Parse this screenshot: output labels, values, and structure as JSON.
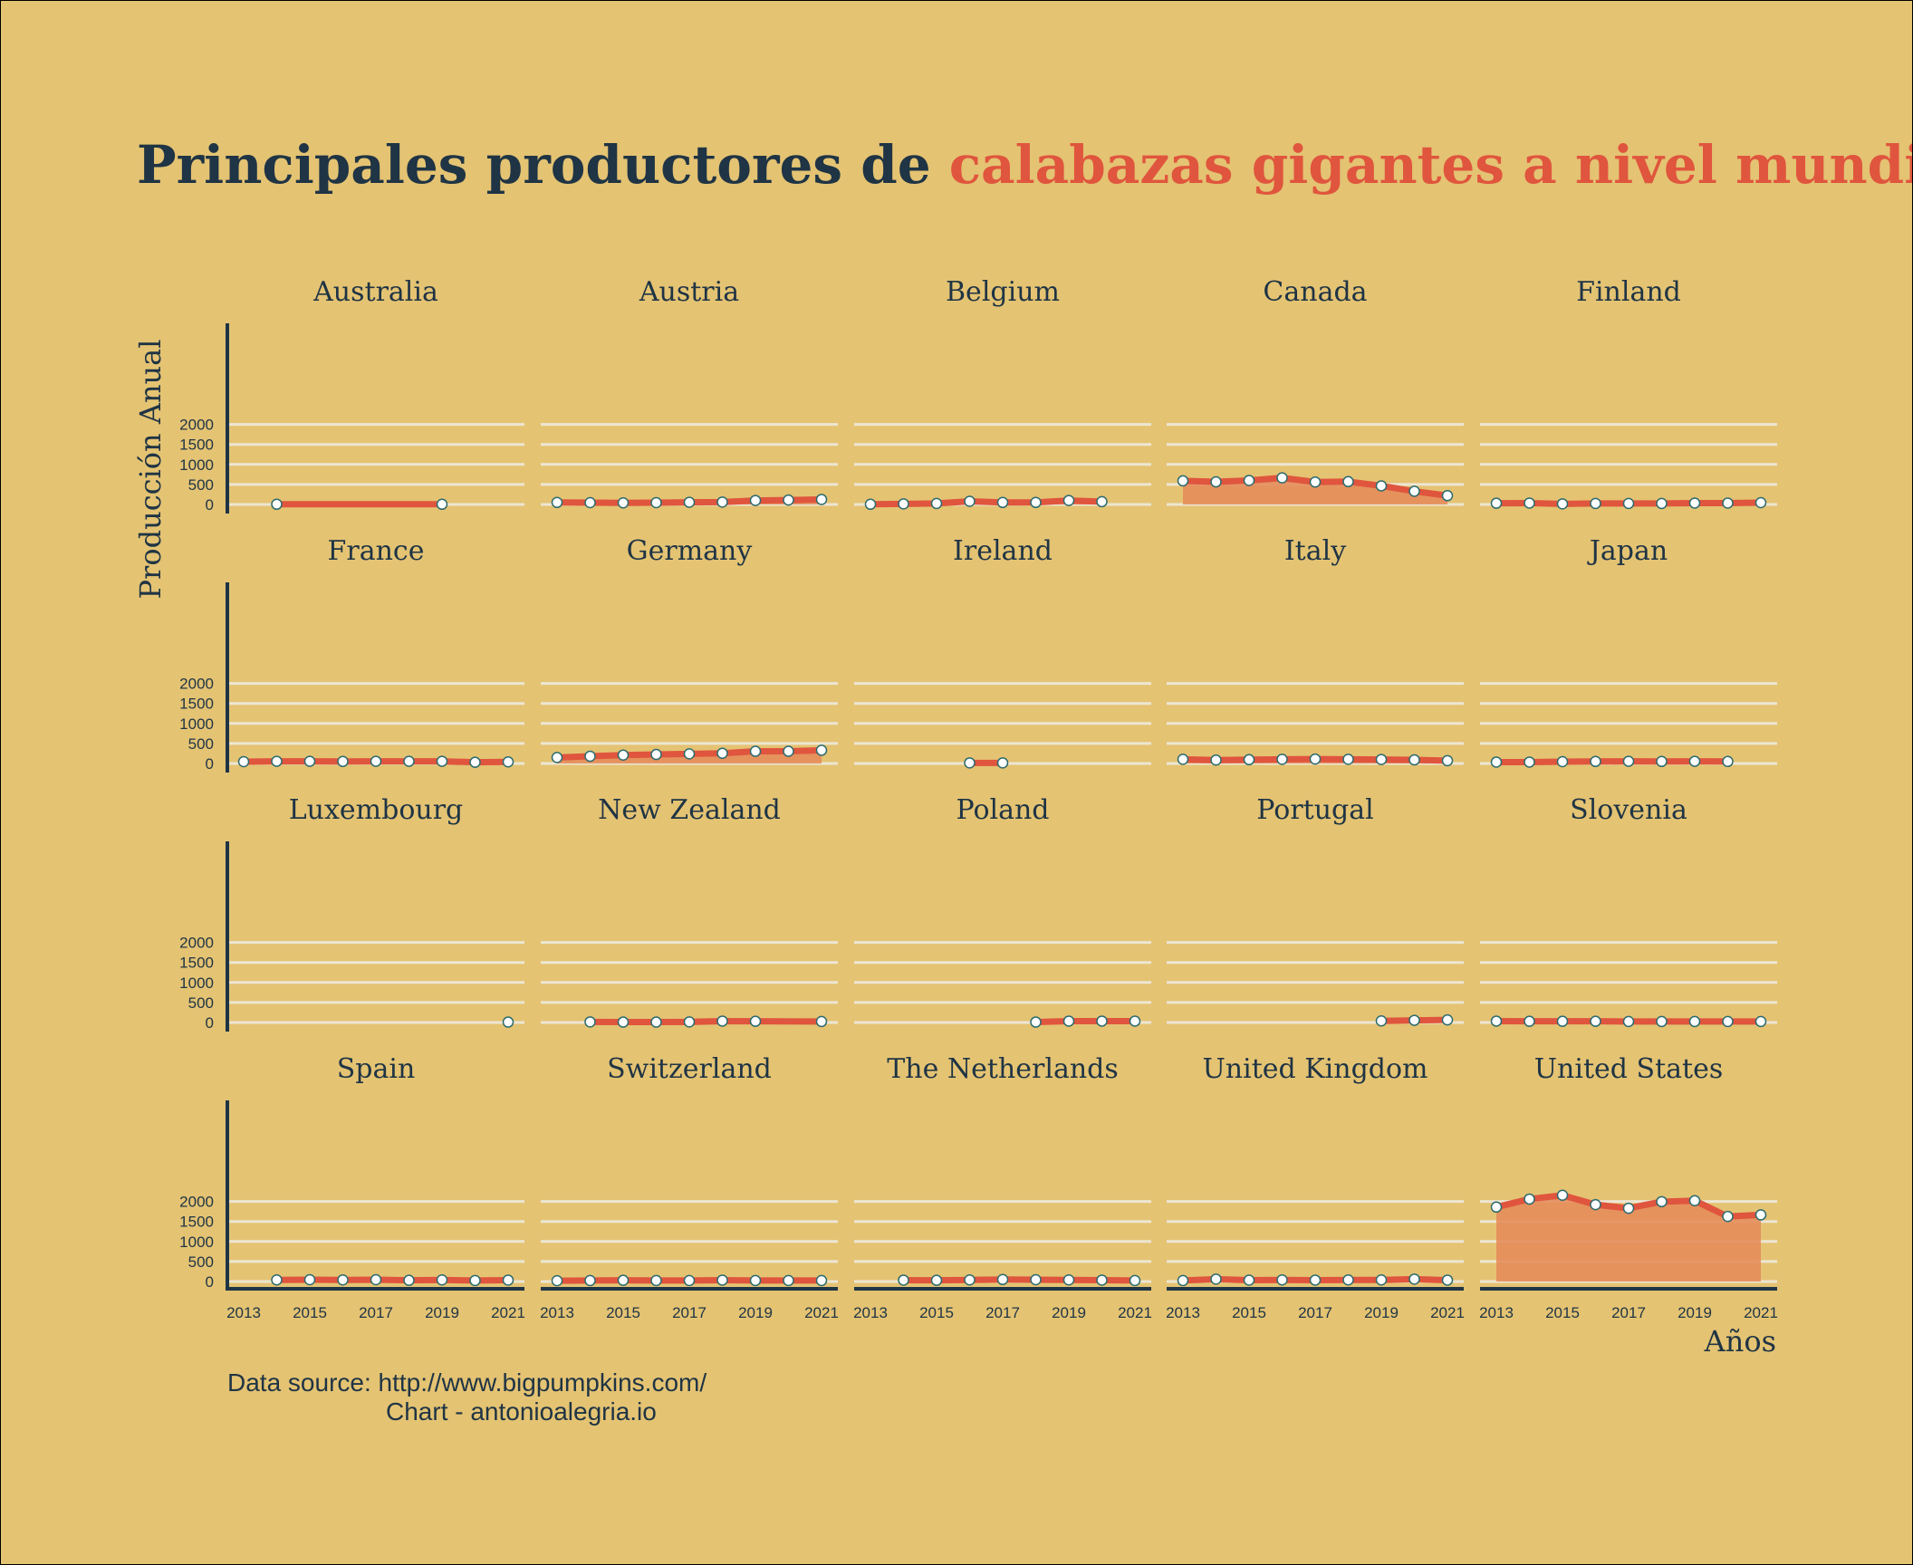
{
  "title": {
    "part1": "Principales productores de",
    "part2": "calabazas gigantes a nivel mundial"
  },
  "caption": {
    "line1": "Data source: http://www.bigpumpkins.com/",
    "line2": "Chart - antonioalegria.io"
  },
  "colors": {
    "background": "#e4c373",
    "dark": "#1f3444",
    "accent": "#e0553d",
    "area": "#e48d5b",
    "grid": "#ede6d3",
    "marker_fill": "#ffffff",
    "marker_edge": "#2c6b6e"
  },
  "chart_data": {
    "type": "line",
    "layout": "small-multiples",
    "ylabel": "Producción Anual",
    "xlabel": "Años",
    "ylim": [
      0,
      2200
    ],
    "yticks": [
      0,
      500,
      1000,
      1500,
      2000
    ],
    "xlim": [
      2013,
      2021
    ],
    "xticks": [
      2013,
      2015,
      2017,
      2019,
      2021
    ],
    "grid": true,
    "panels": [
      {
        "name": "Australia",
        "x": [
          2014,
          2019
        ],
        "y": [
          5,
          5
        ],
        "line_only": true
      },
      {
        "name": "Austria",
        "x": [
          2013,
          2014,
          2015,
          2016,
          2017,
          2018,
          2019,
          2020,
          2021
        ],
        "y": [
          50,
          45,
          40,
          45,
          55,
          60,
          100,
          110,
          125
        ]
      },
      {
        "name": "Belgium",
        "x": [
          2013,
          2014,
          2015,
          2016,
          2017,
          2018,
          2019,
          2020,
          2021
        ],
        "y": [
          5,
          15,
          25,
          80,
          50,
          50,
          100,
          70,
          null
        ]
      },
      {
        "name": "Canada",
        "x": [
          2013,
          2014,
          2015,
          2016,
          2017,
          2018,
          2019,
          2020,
          2021
        ],
        "y": [
          590,
          565,
          600,
          665,
          560,
          570,
          465,
          330,
          220
        ]
      },
      {
        "name": "Finland",
        "x": [
          2013,
          2014,
          2015,
          2016,
          2017,
          2018,
          2019,
          2020,
          2021
        ],
        "y": [
          30,
          35,
          15,
          25,
          25,
          25,
          35,
          35,
          45
        ]
      },
      {
        "name": "France",
        "x": [
          2013,
          2014,
          2015,
          2016,
          2017,
          2018,
          2019,
          2020,
          2021
        ],
        "y": [
          45,
          55,
          55,
          50,
          55,
          55,
          55,
          30,
          40
        ]
      },
      {
        "name": "Germany",
        "x": [
          2013,
          2014,
          2015,
          2016,
          2017,
          2018,
          2019,
          2020,
          2021
        ],
        "y": [
          150,
          180,
          210,
          225,
          240,
          255,
          305,
          305,
          330
        ]
      },
      {
        "name": "Ireland",
        "x": [
          2016,
          2017
        ],
        "y": [
          15,
          15
        ]
      },
      {
        "name": "Italy",
        "x": [
          2013,
          2014,
          2015,
          2016,
          2017,
          2018,
          2019,
          2020,
          2021
        ],
        "y": [
          105,
          85,
          95,
          105,
          110,
          105,
          100,
          90,
          70
        ]
      },
      {
        "name": "Japan",
        "x": [
          2013,
          2014,
          2015,
          2016,
          2017,
          2018,
          2019,
          2020
        ],
        "y": [
          35,
          35,
          45,
          50,
          55,
          50,
          55,
          50
        ]
      },
      {
        "name": "Luxembourg",
        "x": [
          2021
        ],
        "y": [
          10
        ]
      },
      {
        "name": "New Zealand",
        "x": [
          2014,
          2015,
          2016,
          2017,
          2018,
          2019,
          2021
        ],
        "y": [
          15,
          10,
          10,
          15,
          35,
          30,
          25
        ]
      },
      {
        "name": "Poland",
        "x": [
          2018,
          2019,
          2020,
          2021
        ],
        "y": [
          10,
          35,
          35,
          35
        ]
      },
      {
        "name": "Portugal",
        "x": [
          2019,
          2020,
          2021
        ],
        "y": [
          40,
          55,
          65
        ]
      },
      {
        "name": "Slovenia",
        "x": [
          2013,
          2014,
          2015,
          2016,
          2017,
          2018,
          2019,
          2020,
          2021
        ],
        "y": [
          35,
          30,
          30,
          30,
          25,
          25,
          25,
          25,
          25
        ]
      },
      {
        "name": "Spain",
        "x": [
          2014,
          2015,
          2016,
          2017,
          2018,
          2019,
          2020,
          2021
        ],
        "y": [
          40,
          45,
          40,
          45,
          30,
          40,
          25,
          35
        ]
      },
      {
        "name": "Switzerland",
        "x": [
          2013,
          2014,
          2015,
          2016,
          2017,
          2018,
          2019,
          2020,
          2021
        ],
        "y": [
          20,
          25,
          30,
          25,
          25,
          35,
          25,
          25,
          25
        ]
      },
      {
        "name": "The Netherlands",
        "x": [
          2014,
          2015,
          2016,
          2017,
          2018,
          2019,
          2020,
          2021
        ],
        "y": [
          35,
          30,
          40,
          50,
          45,
          40,
          35,
          25
        ]
      },
      {
        "name": "United Kingdom",
        "x": [
          2013,
          2014,
          2015,
          2016,
          2017,
          2018,
          2019,
          2020,
          2021
        ],
        "y": [
          25,
          60,
          35,
          40,
          35,
          40,
          40,
          60,
          35
        ]
      },
      {
        "name": "United States",
        "x": [
          2013,
          2014,
          2015,
          2016,
          2017,
          2018,
          2019,
          2020,
          2021
        ],
        "y": [
          1860,
          2060,
          2155,
          1920,
          1830,
          1995,
          2020,
          1625,
          1665
        ]
      }
    ]
  }
}
